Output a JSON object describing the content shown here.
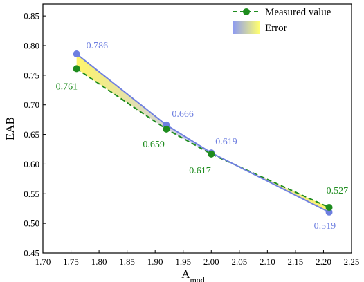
{
  "chart_data": {
    "type": "line",
    "xlabel": "A",
    "xlabel_sub": "mod",
    "ylabel": "EAB",
    "xlim": [
      1.7,
      2.25
    ],
    "ylim": [
      0.45,
      0.87
    ],
    "x_ticks": [
      "1.70",
      "1.75",
      "1.80",
      "1.85",
      "1.90",
      "1.95",
      "2.00",
      "2.05",
      "2.10",
      "2.15",
      "2.20",
      "2.25"
    ],
    "y_ticks": [
      "0.45",
      "0.50",
      "0.55",
      "0.60",
      "0.65",
      "0.70",
      "0.75",
      "0.80",
      "0.85"
    ],
    "x": [
      1.76,
      1.92,
      2.0,
      2.21
    ],
    "series": [
      {
        "name": "Measured value",
        "values": [
          0.761,
          0.659,
          0.617,
          0.527
        ],
        "labels": [
          "0.761",
          "0.659",
          "0.617",
          "0.527"
        ],
        "color": "#1e8c1e",
        "style": "dashed"
      },
      {
        "name": "",
        "values": [
          0.786,
          0.666,
          0.619,
          0.519
        ],
        "labels": [
          "0.786",
          "0.666",
          "0.619",
          "0.519"
        ],
        "color": "#6e7fe0",
        "style": "solid"
      }
    ],
    "error_band": {
      "name": "Error",
      "colors": [
        "#9aa6f0",
        "#ffff80"
      ]
    },
    "legend_position": "top-right",
    "grid": false
  }
}
